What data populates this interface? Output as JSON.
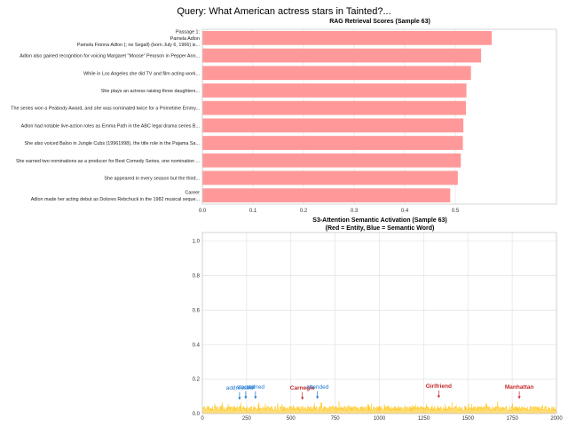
{
  "suptitle": "Query: What American actress stars in Tainted?...",
  "chart_data": [
    {
      "type": "bar",
      "orientation": "horizontal",
      "title": "RAG Retrieval Scores (Sample 63)",
      "xlabel": "",
      "ylabel": "",
      "xlim": [
        0,
        0.7
      ],
      "xticks": [
        "0.0",
        "0.1",
        "0.2",
        "0.3",
        "0.4",
        "0.5"
      ],
      "bar_color": "#ff9999",
      "categories": [
        [
          "Passage 1:",
          "Pamela Adlon",
          "Pamela Fionna Adlon (; ne Segall) (born July 6, 1966) is..."
        ],
        [
          "Adlon also gained recognition for voicing Margaret \"Moose\" Pearson in Pepper Ann..."
        ],
        [
          "While in Los Angeles she did TV and film acting work..."
        ],
        [
          "She plays an actress raising three daughters..."
        ],
        [
          "The series won a Peabody Award, and she was nominated twice for a Primetime Emmy..."
        ],
        [
          "Adlon had notable live-action roles as Emma Path in the ABC legal drama series B..."
        ],
        [
          "She also voiced Baloo in Jungle Cubs (19961998), the title role in the Pajama Sa..."
        ],
        [
          "She earned two nominations as a producer for Best Comedy Series, one nomination ..."
        ],
        [
          "She appeared in every season but the third..."
        ],
        [
          "Career",
          "Adlon made her acting debut as Dolores Rebchuck in the 1982 musical seque..."
        ]
      ],
      "values": [
        0.572,
        0.551,
        0.531,
        0.522,
        0.521,
        0.516,
        0.515,
        0.511,
        0.505,
        0.49
      ]
    },
    {
      "type": "area",
      "title": "S3-Attention Semantic Activation (Sample 63)",
      "subtitle": "(Red = Entity, Blue = Semantic Word)",
      "xlim": [
        0,
        2000
      ],
      "ylim": [
        0,
        1.05
      ],
      "xticks": [
        "0",
        "250",
        "500",
        "750",
        "1000",
        "1250",
        "1500",
        "1750",
        "2000"
      ],
      "yticks": [
        "0.0",
        "0.2",
        "0.4",
        "0.6",
        "0.8",
        "1.0"
      ],
      "series_color": "#ffc107",
      "baseline_level": 0.04,
      "noise_amplitude": 0.03,
      "annotations": [
        {
          "label": "addressed",
          "x": 210,
          "y": 0.08,
          "kind": "semantic",
          "label_y": 0.14
        },
        {
          "label": "starred",
          "x": 245,
          "y": 0.085,
          "kind": "semantic",
          "label_y": 0.145
        },
        {
          "label": "starred",
          "x": 300,
          "y": 0.085,
          "kind": "semantic",
          "label_y": 0.145
        },
        {
          "label": "Carnegie",
          "x": 565,
          "y": 0.08,
          "kind": "entity",
          "label_y": 0.14
        },
        {
          "label": "attended",
          "x": 650,
          "y": 0.085,
          "kind": "semantic",
          "label_y": 0.145
        },
        {
          "label": "Girlfriend",
          "x": 1335,
          "y": 0.09,
          "kind": "entity",
          "label_y": 0.15
        },
        {
          "label": "Manhattan",
          "x": 1790,
          "y": 0.085,
          "kind": "entity",
          "label_y": 0.145
        }
      ],
      "entity_color": "#c62828",
      "semantic_color": "#1976d2"
    }
  ]
}
